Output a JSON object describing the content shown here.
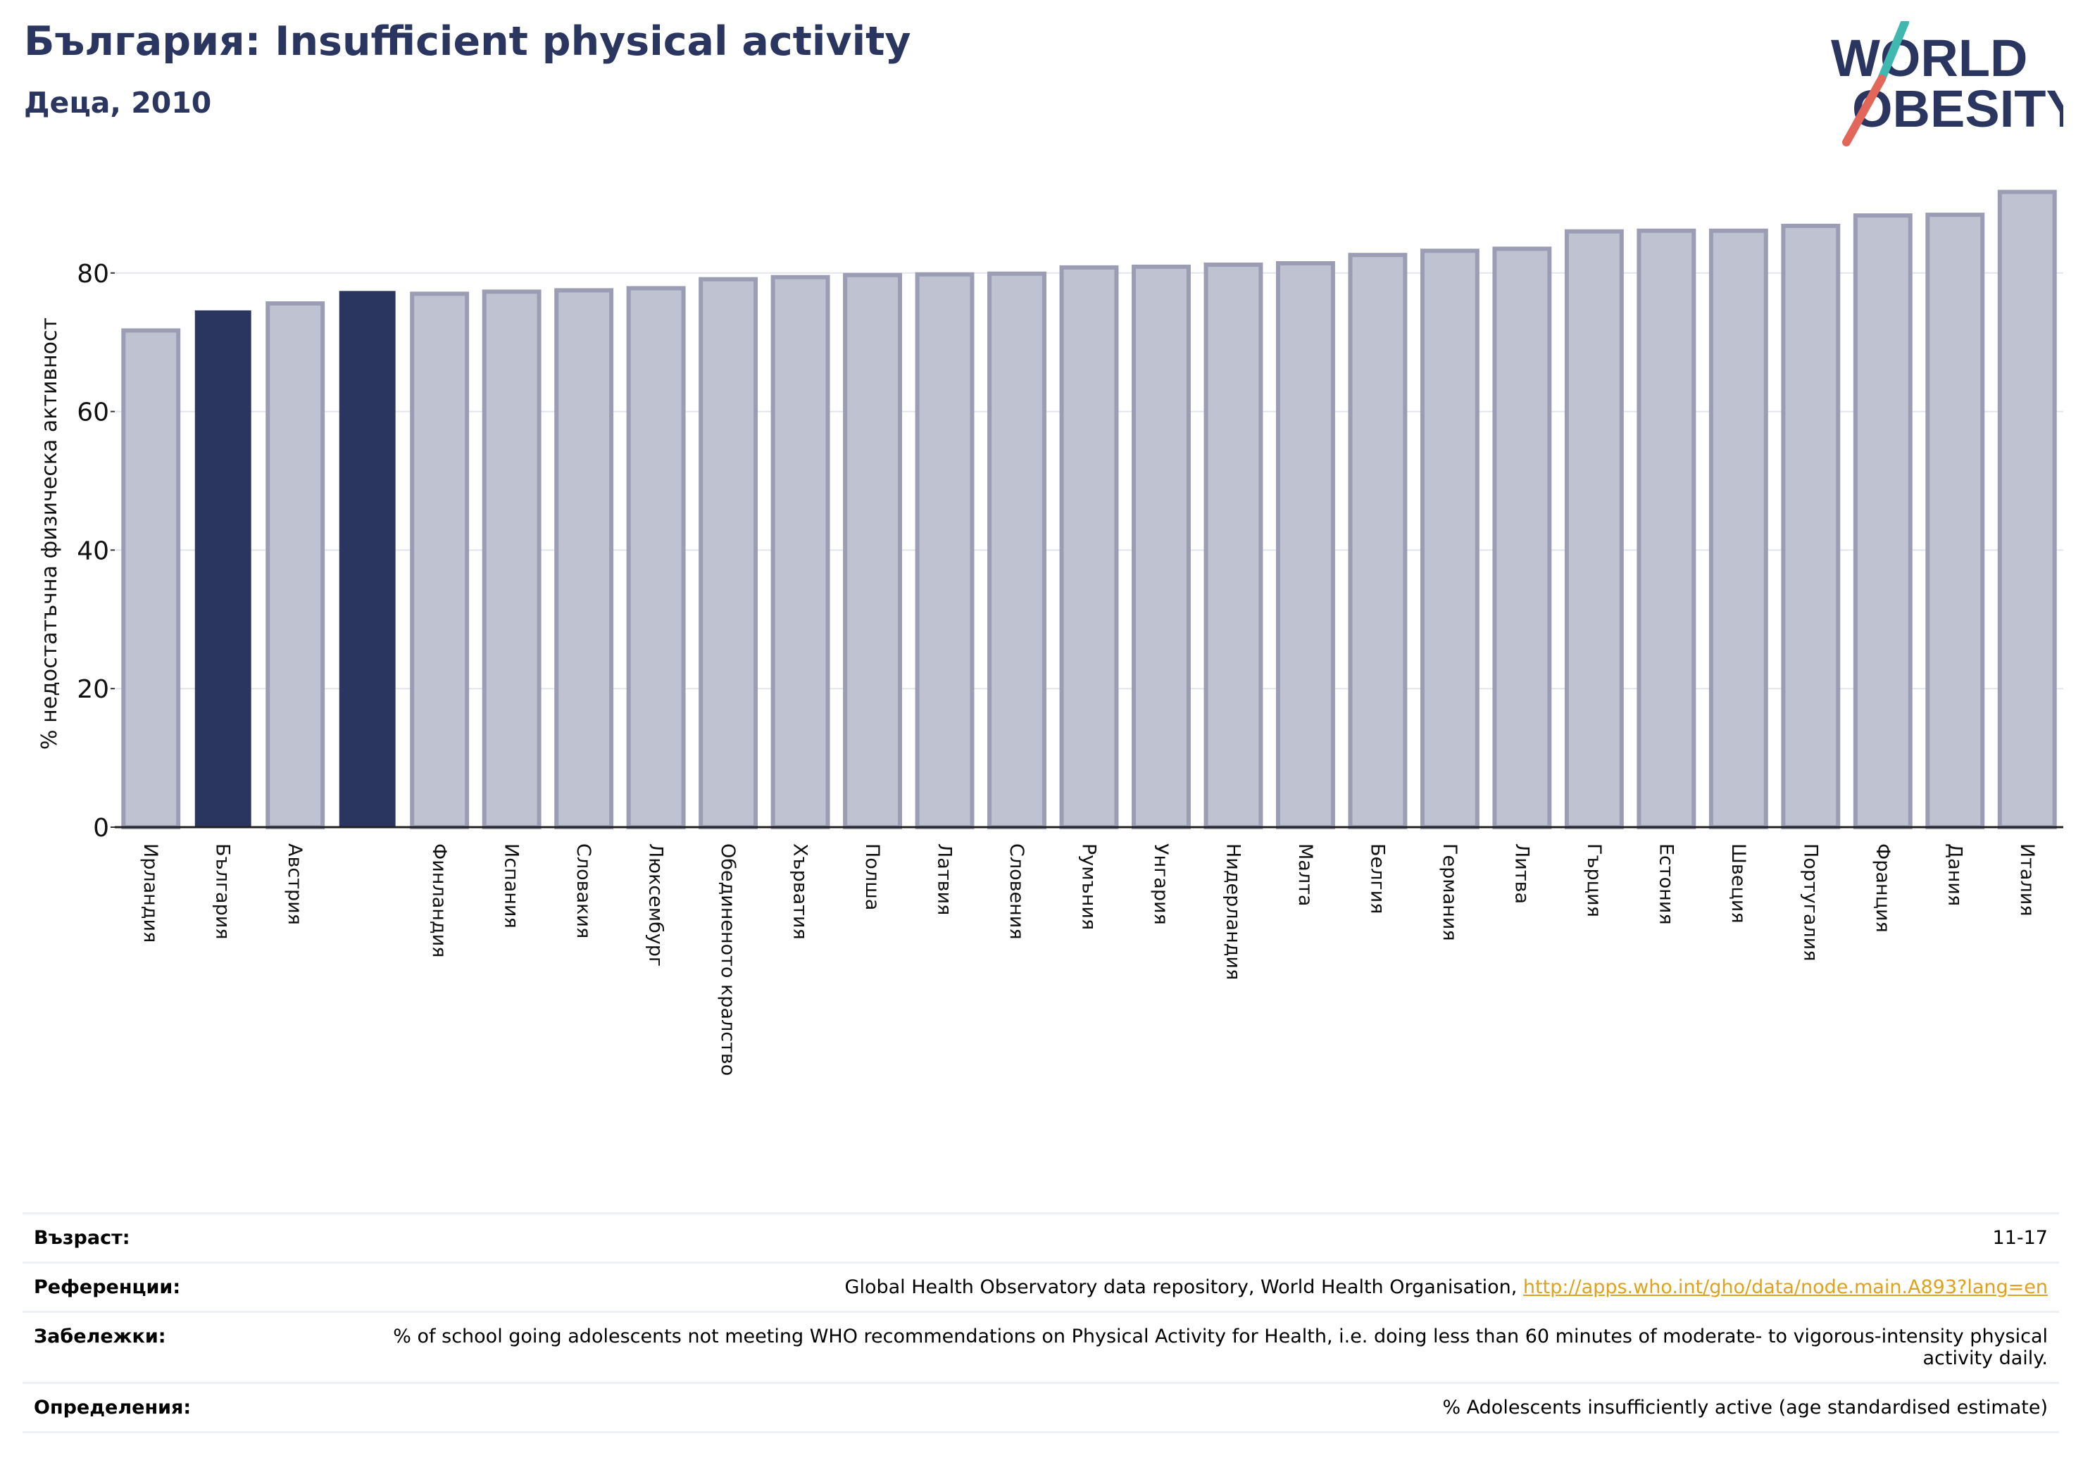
{
  "header": {
    "title": "България: Insufficient physical activity",
    "subtitle": "Деца, 2010"
  },
  "logo": {
    "line1": "WORLD",
    "line2": "OBESITY",
    "colors": {
      "text": "#2b3660",
      "slash_top": "#3fb8b0",
      "slash_bottom": "#e2665a"
    }
  },
  "colors": {
    "bar_default": "#bfc2d0",
    "bar_edge": "#9a9db4",
    "bar_highlight": "#2b3660",
    "title": "#2b3660",
    "link": "#e0a21b"
  },
  "chart_data": {
    "type": "bar",
    "title": "",
    "xlabel": "",
    "ylabel": "% недостатъчна физическа активност",
    "ylim": [
      0,
      94
    ],
    "yticks": [
      0,
      20,
      40,
      60,
      80
    ],
    "grid": true,
    "legend": "none",
    "categories": [
      "Ирландия",
      "България",
      "Австрия",
      "",
      "Финландия",
      "Испания",
      "Словакия",
      "Люксембург",
      "Обединеното кралство",
      "Хърватия",
      "Полша",
      "Латвия",
      "Словения",
      "Румъния",
      "Унгария",
      "Нидерландия",
      "Малта",
      "Белгия",
      "Германия",
      "Литва",
      "Гърция",
      "Естония",
      "Швеция",
      "Португалия",
      "Франция",
      "Дания",
      "Италия"
    ],
    "values": [
      71.7,
      74.5,
      75.6,
      77.3,
      77.0,
      77.3,
      77.5,
      77.8,
      79.1,
      79.4,
      79.7,
      79.8,
      79.9,
      80.8,
      80.9,
      81.2,
      81.4,
      82.6,
      83.2,
      83.5,
      86.0,
      86.1,
      86.1,
      86.8,
      88.3,
      88.4,
      91.7
    ],
    "highlighted": [
      1,
      3
    ]
  },
  "info": {
    "age": {
      "label": "Възраст:",
      "value": "11-17"
    },
    "references": {
      "label": "Референции:",
      "text": "Global Health Observatory data repository, World Health Organisation, ",
      "link": "http://apps.who.int/gho/data/node.main.A893?lang=en"
    },
    "notes": {
      "label": "Забележки:",
      "value": "% of school going adolescents not meeting WHO recommendations on Physical Activity for Health, i.e. doing less than 60 minutes of moderate- to vigorous-intensity physical activity daily."
    },
    "definitions": {
      "label": "Определения:",
      "value": "% Adolescents insufficiently active (age standardised estimate)"
    }
  }
}
